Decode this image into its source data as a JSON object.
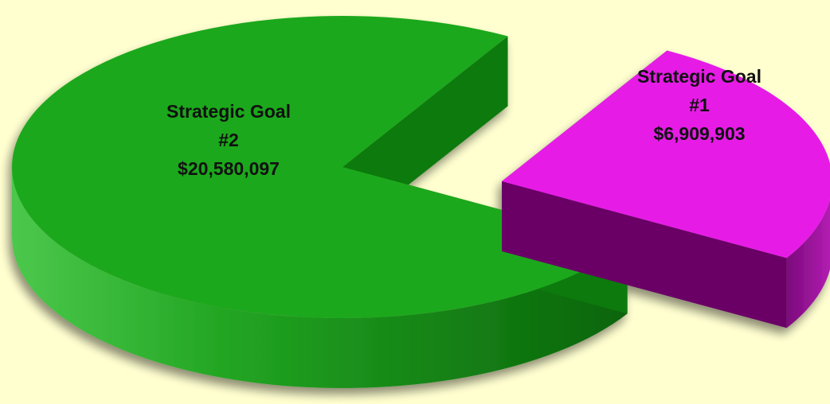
{
  "chart_data": {
    "type": "pie",
    "style": "3d-exploded",
    "currency": "USD",
    "slices": [
      {
        "name": "Strategic Goal #1",
        "label_lines": [
          "Strategic Goal",
          "#1",
          "$6,909,903"
        ],
        "value": 6909903,
        "color": "#e61ee6",
        "side_color": "#6a0566",
        "exploded": true
      },
      {
        "name": "Strategic Goal #2",
        "label_lines": [
          "Strategic Goal",
          "#2",
          "$20,580,097"
        ],
        "value": 20580097,
        "color": "#1fa81f",
        "side_color": "#0f7a0f",
        "exploded": false
      }
    ]
  },
  "colors": {
    "background": "#ffffd0"
  }
}
